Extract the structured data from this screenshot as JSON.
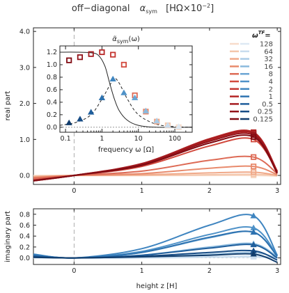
{
  "title": "off−diagonal   α_sym  [HΩ×10⁻²]",
  "title_parts": {
    "main": "off−diagonal",
    "alpha": "α",
    "alpha_sub": "sym",
    "units": "[HΩ×10",
    "units_exp": "−2",
    "units_close": "]"
  },
  "legend_title": "ω",
  "legend_title_sup": "TF",
  "legend_title_tail": "=",
  "chart_data": [
    {
      "type": "line",
      "panel": "real part",
      "ylabel": "real part",
      "xlabel": "",
      "xlim": [
        -0.6,
        3.05
      ],
      "ylim": [
        -0.25,
        4.1
      ],
      "xticks": [
        "0",
        "1",
        "2",
        "3"
      ],
      "yticks": [
        "0.0",
        "1.0",
        "2.0",
        "3.0",
        "4.0"
      ],
      "marker_x": 2.65,
      "series": [
        {
          "name": "128",
          "color": "#f7dccb",
          "values": [
            [
              -0.6,
              0.0
            ],
            [
              0,
              0.0
            ],
            [
              1,
              0.0
            ],
            [
              2,
              0.0
            ],
            [
              2.65,
              0.0
            ],
            [
              3,
              -0.02
            ]
          ]
        },
        {
          "name": "64",
          "color": "#f4c6ab",
          "values": [
            [
              -0.6,
              -0.02
            ],
            [
              0,
              0.0
            ],
            [
              1,
              0.0
            ],
            [
              2,
              0.02
            ],
            [
              2.65,
              0.03
            ],
            [
              3,
              0.0
            ]
          ]
        },
        {
          "name": "32",
          "color": "#f0a888",
          "values": [
            [
              -0.6,
              -0.04
            ],
            [
              0,
              0.0
            ],
            [
              1,
              0.02
            ],
            [
              2,
              0.07
            ],
            [
              2.65,
              0.09
            ],
            [
              3,
              0.0
            ]
          ]
        },
        {
          "name": "16",
          "color": "#e88a6c",
          "values": [
            [
              -0.6,
              -0.06
            ],
            [
              0,
              0.0
            ],
            [
              1,
              0.05
            ],
            [
              2,
              0.2
            ],
            [
              2.65,
              0.25
            ],
            [
              3,
              0.02
            ]
          ]
        },
        {
          "name": "8",
          "color": "#dd6a55",
          "values": [
            [
              -0.6,
              -0.08
            ],
            [
              0,
              0.0
            ],
            [
              1,
              0.12
            ],
            [
              2,
              0.42
            ],
            [
              2.65,
              0.51
            ],
            [
              3,
              0.05
            ]
          ]
        },
        {
          "name": "4",
          "color": "#d24a3e",
          "values": [
            [
              -0.6,
              -0.12
            ],
            [
              0,
              0.0
            ],
            [
              1,
              0.25
            ],
            [
              2,
              0.82
            ],
            [
              2.65,
              1.0
            ],
            [
              3,
              0.1
            ]
          ]
        },
        {
          "name": "2",
          "color": "#c43530",
          "values": [
            [
              -0.6,
              -0.14
            ],
            [
              0,
              0.0
            ],
            [
              1,
              0.3
            ],
            [
              2,
              0.98
            ],
            [
              2.65,
              1.16
            ],
            [
              3,
              0.12
            ]
          ]
        },
        {
          "name": "1",
          "color": "#b52525",
          "values": [
            [
              -0.6,
              -0.15
            ],
            [
              0,
              0.0
            ],
            [
              1,
              0.32
            ],
            [
              2,
              1.02
            ],
            [
              2.65,
              1.2
            ],
            [
              3,
              0.12
            ]
          ]
        },
        {
          "name": "0.5",
          "color": "#a51c20",
          "values": [
            [
              -0.6,
              -0.15
            ],
            [
              0,
              0.0
            ],
            [
              1,
              0.33
            ],
            [
              2,
              1.0
            ],
            [
              2.65,
              1.17
            ],
            [
              3,
              0.1
            ]
          ]
        },
        {
          "name": "0.25",
          "color": "#931219",
          "values": [
            [
              -0.6,
              -0.15
            ],
            [
              0,
              0.0
            ],
            [
              1,
              0.3
            ],
            [
              2,
              0.95
            ],
            [
              2.65,
              1.12
            ],
            [
              3,
              0.08
            ]
          ]
        },
        {
          "name": "0.125",
          "color": "#800a12",
          "values": [
            [
              -0.6,
              -0.14
            ],
            [
              0,
              0.0
            ],
            [
              1,
              0.28
            ],
            [
              2,
              0.9
            ],
            [
              2.65,
              1.07
            ],
            [
              3,
              0.06
            ]
          ]
        }
      ]
    },
    {
      "type": "line",
      "panel": "imaginary part",
      "ylabel": "imaginary part",
      "xlabel": "height  z [H]",
      "xlim": [
        -0.6,
        3.05
      ],
      "ylim": [
        -0.12,
        0.9
      ],
      "xticks": [
        "0",
        "1",
        "2",
        "3"
      ],
      "yticks": [
        "0.0",
        "0.2",
        "0.4",
        "0.6",
        "0.8"
      ],
      "marker_x": 2.65,
      "series": [
        {
          "name": "128",
          "color": "#dde9f3",
          "values": [
            [
              -0.6,
              0.0
            ],
            [
              0,
              0.0
            ],
            [
              1,
              0.0
            ],
            [
              2,
              0.01
            ],
            [
              2.65,
              0.01
            ],
            [
              3,
              0.0
            ]
          ]
        },
        {
          "name": "64",
          "color": "#c8dcee",
          "values": [
            [
              -0.6,
              0.01
            ],
            [
              0,
              0.0
            ],
            [
              1,
              0.0
            ],
            [
              2,
              0.02
            ],
            [
              2.65,
              0.03
            ],
            [
              3,
              0.0
            ]
          ]
        },
        {
          "name": "32",
          "color": "#a9cbe6",
          "values": [
            [
              -0.6,
              0.01
            ],
            [
              0,
              0.0
            ],
            [
              1,
              0.02
            ],
            [
              2,
              0.07
            ],
            [
              2.65,
              0.1
            ],
            [
              3,
              0.0
            ]
          ]
        },
        {
          "name": "16",
          "color": "#8ab9dd",
          "values": [
            [
              -0.6,
              0.03
            ],
            [
              0,
              0.0
            ],
            [
              1,
              0.05
            ],
            [
              2,
              0.2
            ],
            [
              2.65,
              0.26
            ],
            [
              3,
              0.02
            ]
          ]
        },
        {
          "name": "8",
          "color": "#6aa5d3",
          "values": [
            [
              -0.6,
              0.05
            ],
            [
              0,
              0.0
            ],
            [
              1,
              0.1
            ],
            [
              2,
              0.37
            ],
            [
              2.65,
              0.47
            ],
            [
              3,
              0.04
            ]
          ]
        },
        {
          "name": "4",
          "color": "#4f92c8",
          "values": [
            [
              -0.6,
              0.06
            ],
            [
              0,
              0.0
            ],
            [
              1,
              0.12
            ],
            [
              2,
              0.43
            ],
            [
              2.65,
              0.55
            ],
            [
              3,
              0.04
            ]
          ]
        },
        {
          "name": "2",
          "color": "#3f85c0",
          "values": [
            [
              -0.6,
              0.07
            ],
            [
              0,
              0.0
            ],
            [
              1,
              0.17
            ],
            [
              2,
              0.6
            ],
            [
              2.65,
              0.77
            ],
            [
              3,
              0.05
            ]
          ]
        },
        {
          "name": "1",
          "color": "#2d72b0",
          "values": [
            [
              -0.6,
              0.05
            ],
            [
              0,
              0.0
            ],
            [
              1,
              0.1
            ],
            [
              2,
              0.38
            ],
            [
              2.65,
              0.47
            ],
            [
              3,
              0.03
            ]
          ]
        },
        {
          "name": "0.5",
          "color": "#1f5e9c",
          "values": [
            [
              -0.6,
              0.03
            ],
            [
              0,
              0.0
            ],
            [
              1,
              0.05
            ],
            [
              2,
              0.18
            ],
            [
              2.65,
              0.24
            ],
            [
              3,
              0.0
            ]
          ]
        },
        {
          "name": "0.25",
          "color": "#174c85",
          "values": [
            [
              -0.6,
              0.02
            ],
            [
              0,
              0.0
            ],
            [
              1,
              0.03
            ],
            [
              2,
              0.1
            ],
            [
              2.65,
              0.13
            ],
            [
              3,
              -0.04
            ]
          ]
        },
        {
          "name": "0.125",
          "color": "#103c6c",
          "values": [
            [
              -0.6,
              0.01
            ],
            [
              0,
              0.0
            ],
            [
              1,
              0.02
            ],
            [
              2,
              0.05
            ],
            [
              2.65,
              0.07
            ],
            [
              3,
              -0.08
            ]
          ]
        }
      ]
    },
    {
      "type": "scatter",
      "panel": "inset",
      "title": "α̃_sym(ω)",
      "title_parts": {
        "alpha": "α̃",
        "sub": "sym",
        "arg": "(ω)"
      },
      "xlabel": "frequency   ω [Ω]",
      "xscale": "log",
      "xlim": [
        0.07,
        300
      ],
      "ylim": [
        -0.08,
        1.3
      ],
      "xticks": [
        "0.1",
        "1",
        "10",
        "100"
      ],
      "yticks": [
        "0.0",
        "0.2",
        "0.4",
        "0.6",
        "0.8",
        "1.0",
        "1.2"
      ],
      "real_points": [
        [
          0.125,
          1.07
        ],
        [
          0.25,
          1.12
        ],
        [
          0.5,
          1.17
        ],
        [
          1,
          1.2
        ],
        [
          2,
          1.16
        ],
        [
          4,
          1.0
        ],
        [
          8,
          0.51
        ],
        [
          16,
          0.25
        ],
        [
          32,
          0.09
        ],
        [
          64,
          0.03
        ],
        [
          128,
          0.0
        ]
      ],
      "imag_points": [
        [
          0.125,
          0.07
        ],
        [
          0.25,
          0.13
        ],
        [
          0.5,
          0.24
        ],
        [
          1,
          0.47
        ],
        [
          2,
          0.77
        ],
        [
          4,
          0.55
        ],
        [
          8,
          0.47
        ],
        [
          16,
          0.26
        ],
        [
          32,
          0.1
        ],
        [
          64,
          0.03
        ],
        [
          128,
          0.01
        ]
      ],
      "real_curve": [
        [
          0.07,
          1.2
        ],
        [
          0.2,
          1.2
        ],
        [
          0.5,
          1.19
        ],
        [
          0.8,
          1.15
        ],
        [
          1.2,
          0.98
        ],
        [
          1.6,
          0.72
        ],
        [
          2.2,
          0.45
        ],
        [
          3,
          0.26
        ],
        [
          5,
          0.11
        ],
        [
          10,
          0.03
        ],
        [
          30,
          0.0
        ],
        [
          300,
          0.0
        ]
      ],
      "imag_curve": [
        [
          0.07,
          0.03
        ],
        [
          0.2,
          0.08
        ],
        [
          0.5,
          0.2
        ],
        [
          1,
          0.45
        ],
        [
          1.6,
          0.66
        ],
        [
          2.2,
          0.78
        ],
        [
          3,
          0.7
        ],
        [
          5,
          0.45
        ],
        [
          10,
          0.2
        ],
        [
          30,
          0.05
        ],
        [
          100,
          0.01
        ],
        [
          300,
          0.0
        ]
      ]
    }
  ]
}
